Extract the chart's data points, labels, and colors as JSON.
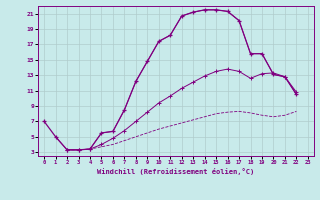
{
  "xlabel": "Windchill (Refroidissement éolien,°C)",
  "bg_color": "#c8eaea",
  "line_color": "#800080",
  "grid_color": "#b0cccc",
  "xlim": [
    -0.5,
    23.5
  ],
  "ylim": [
    2.5,
    22.0
  ],
  "xticks": [
    0,
    1,
    2,
    3,
    4,
    5,
    6,
    7,
    8,
    9,
    10,
    11,
    12,
    13,
    14,
    15,
    16,
    17,
    18,
    19,
    20,
    21,
    22,
    23
  ],
  "yticks": [
    3,
    5,
    7,
    9,
    11,
    13,
    15,
    17,
    19,
    21
  ],
  "line1_x": [
    0,
    1,
    2,
    3,
    4,
    5,
    6,
    7,
    8,
    9,
    10,
    11,
    12,
    13,
    14,
    15,
    16,
    17,
    18,
    19,
    20,
    21,
    22
  ],
  "line1_y": [
    7.0,
    5.0,
    3.3,
    3.3,
    3.4,
    5.5,
    5.7,
    8.5,
    12.2,
    14.8,
    17.4,
    18.2,
    20.7,
    21.2,
    21.5,
    21.5,
    21.3,
    20.1,
    15.8,
    15.8,
    13.1,
    12.8,
    10.5
  ],
  "line2_x": [
    1,
    2,
    3,
    4,
    5,
    6,
    7,
    8,
    9,
    10,
    11,
    12,
    13,
    14,
    15,
    16,
    17,
    18,
    19,
    20,
    21,
    22
  ],
  "line2_y": [
    5.0,
    3.3,
    3.3,
    3.4,
    5.5,
    5.7,
    8.5,
    12.2,
    14.8,
    17.4,
    18.2,
    20.7,
    21.2,
    21.5,
    21.5,
    21.3,
    20.1,
    15.8,
    15.8,
    13.1,
    12.8,
    10.5
  ],
  "line3_x": [
    2,
    3,
    4,
    5,
    6,
    7,
    8,
    9,
    10,
    11,
    12,
    13,
    14,
    15,
    16,
    17,
    18,
    19,
    20,
    21,
    22
  ],
  "line3_y": [
    3.3,
    3.3,
    3.4,
    4.0,
    4.8,
    5.8,
    7.0,
    8.2,
    9.4,
    10.3,
    11.3,
    12.1,
    12.9,
    13.5,
    13.8,
    13.5,
    12.6,
    13.2,
    13.3,
    12.8,
    10.8
  ],
  "line4_x": [
    2,
    3,
    4,
    5,
    6,
    7,
    8,
    9,
    10,
    11,
    12,
    13,
    14,
    15,
    16,
    17,
    18,
    19,
    20,
    21,
    22
  ],
  "line4_y": [
    3.3,
    3.3,
    3.4,
    3.7,
    4.0,
    4.5,
    5.0,
    5.5,
    6.0,
    6.4,
    6.8,
    7.2,
    7.6,
    8.0,
    8.2,
    8.3,
    8.1,
    7.8,
    7.6,
    7.8,
    8.3
  ]
}
